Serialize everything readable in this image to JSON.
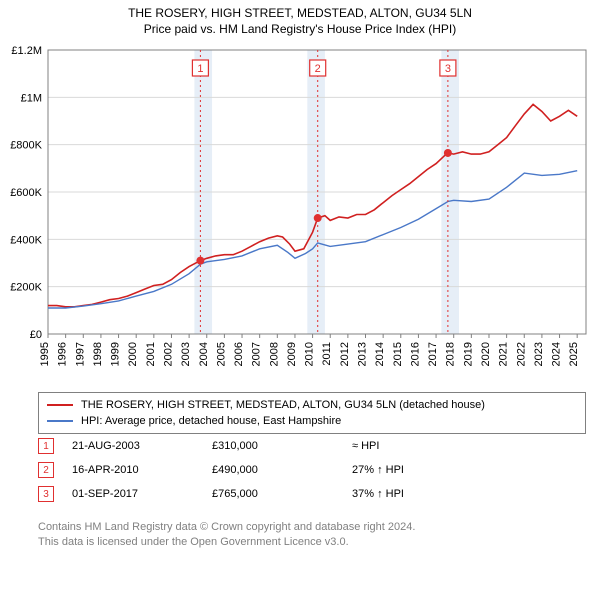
{
  "title": "THE ROSERY, HIGH STREET, MEDSTEAD, ALTON, GU34 5LN",
  "subtitle": "Price paid vs. HM Land Registry's House Price Index (HPI)",
  "chart": {
    "type": "line",
    "background_color": "#ffffff",
    "grid_color": "#d9d9d9",
    "axis_color": "#808080",
    "shade_color": "#e6eef7",
    "xlim": [
      1995,
      2025.5
    ],
    "x_ticks": [
      1995,
      1996,
      1997,
      1998,
      1999,
      2000,
      2001,
      2002,
      2003,
      2004,
      2005,
      2006,
      2007,
      2008,
      2009,
      2010,
      2011,
      2012,
      2013,
      2014,
      2015,
      2016,
      2017,
      2018,
      2019,
      2020,
      2021,
      2022,
      2023,
      2024,
      2025
    ],
    "ylim": [
      0,
      1200000
    ],
    "y_ticks": [
      0,
      200000,
      400000,
      600000,
      800000,
      1000000,
      1200000
    ],
    "y_tick_labels": [
      "£0",
      "£200K",
      "£400K",
      "£600K",
      "£800K",
      "£1M",
      "£1.2M"
    ],
    "shaded_x_ranges": [
      [
        2003.3,
        2004.3
      ],
      [
        2009.7,
        2010.7
      ],
      [
        2017.3,
        2018.3
      ]
    ],
    "markers": [
      {
        "num": "1",
        "x": 2003.64,
        "y": 310000
      },
      {
        "num": "2",
        "x": 2010.29,
        "y": 490000
      },
      {
        "num": "3",
        "x": 2017.67,
        "y": 765000
      }
    ],
    "marker_line_color": "#e03030",
    "marker_dot_color": "#e03030",
    "series": [
      {
        "name": "property",
        "color": "#d02020",
        "line_width": 1.6,
        "points": [
          [
            1995.0,
            120000
          ],
          [
            1995.5,
            120000
          ],
          [
            1996.0,
            115000
          ],
          [
            1996.5,
            115000
          ],
          [
            1997.0,
            120000
          ],
          [
            1997.5,
            125000
          ],
          [
            1998.0,
            135000
          ],
          [
            1998.5,
            145000
          ],
          [
            1999.0,
            150000
          ],
          [
            1999.5,
            160000
          ],
          [
            2000.0,
            175000
          ],
          [
            2000.5,
            190000
          ],
          [
            2001.0,
            205000
          ],
          [
            2001.5,
            210000
          ],
          [
            2002.0,
            230000
          ],
          [
            2002.5,
            260000
          ],
          [
            2003.0,
            285000
          ],
          [
            2003.64,
            310000
          ],
          [
            2004.0,
            320000
          ],
          [
            2004.5,
            330000
          ],
          [
            2005.0,
            335000
          ],
          [
            2005.5,
            335000
          ],
          [
            2006.0,
            350000
          ],
          [
            2006.5,
            370000
          ],
          [
            2007.0,
            390000
          ],
          [
            2007.5,
            405000
          ],
          [
            2008.0,
            415000
          ],
          [
            2008.3,
            410000
          ],
          [
            2008.7,
            380000
          ],
          [
            2009.0,
            350000
          ],
          [
            2009.5,
            360000
          ],
          [
            2010.0,
            430000
          ],
          [
            2010.29,
            490000
          ],
          [
            2010.7,
            500000
          ],
          [
            2011.0,
            480000
          ],
          [
            2011.5,
            495000
          ],
          [
            2012.0,
            490000
          ],
          [
            2012.5,
            505000
          ],
          [
            2013.0,
            505000
          ],
          [
            2013.5,
            525000
          ],
          [
            2014.0,
            555000
          ],
          [
            2014.5,
            585000
          ],
          [
            2015.0,
            610000
          ],
          [
            2015.5,
            635000
          ],
          [
            2016.0,
            665000
          ],
          [
            2016.5,
            695000
          ],
          [
            2017.0,
            720000
          ],
          [
            2017.5,
            755000
          ],
          [
            2017.67,
            765000
          ],
          [
            2018.0,
            760000
          ],
          [
            2018.5,
            770000
          ],
          [
            2019.0,
            760000
          ],
          [
            2019.5,
            760000
          ],
          [
            2020.0,
            770000
          ],
          [
            2020.5,
            800000
          ],
          [
            2021.0,
            830000
          ],
          [
            2021.5,
            880000
          ],
          [
            2022.0,
            930000
          ],
          [
            2022.5,
            970000
          ],
          [
            2023.0,
            940000
          ],
          [
            2023.5,
            900000
          ],
          [
            2024.0,
            920000
          ],
          [
            2024.5,
            945000
          ],
          [
            2025.0,
            920000
          ]
        ]
      },
      {
        "name": "hpi",
        "color": "#4a78c8",
        "line_width": 1.4,
        "points": [
          [
            1995.0,
            110000
          ],
          [
            1996.0,
            110000
          ],
          [
            1997.0,
            118000
          ],
          [
            1998.0,
            128000
          ],
          [
            1999.0,
            140000
          ],
          [
            2000.0,
            160000
          ],
          [
            2001.0,
            180000
          ],
          [
            2002.0,
            210000
          ],
          [
            2003.0,
            255000
          ],
          [
            2003.64,
            295000
          ],
          [
            2004.0,
            305000
          ],
          [
            2005.0,
            315000
          ],
          [
            2006.0,
            330000
          ],
          [
            2007.0,
            360000
          ],
          [
            2008.0,
            375000
          ],
          [
            2008.6,
            345000
          ],
          [
            2009.0,
            320000
          ],
          [
            2009.6,
            340000
          ],
          [
            2010.0,
            360000
          ],
          [
            2010.29,
            385000
          ],
          [
            2011.0,
            370000
          ],
          [
            2012.0,
            380000
          ],
          [
            2013.0,
            390000
          ],
          [
            2014.0,
            420000
          ],
          [
            2015.0,
            450000
          ],
          [
            2016.0,
            485000
          ],
          [
            2017.0,
            530000
          ],
          [
            2017.67,
            560000
          ],
          [
            2018.0,
            565000
          ],
          [
            2019.0,
            560000
          ],
          [
            2020.0,
            570000
          ],
          [
            2021.0,
            620000
          ],
          [
            2022.0,
            680000
          ],
          [
            2023.0,
            670000
          ],
          [
            2024.0,
            675000
          ],
          [
            2025.0,
            690000
          ]
        ]
      }
    ]
  },
  "legend": {
    "items": [
      {
        "color": "#d02020",
        "label": "THE ROSERY, HIGH STREET, MEDSTEAD, ALTON, GU34 5LN (detached house)"
      },
      {
        "color": "#4a78c8",
        "label": "HPI: Average price, detached house, East Hampshire"
      }
    ]
  },
  "events": [
    {
      "num": "1",
      "date": "21-AUG-2003",
      "price": "£310,000",
      "delta": "≈ HPI"
    },
    {
      "num": "2",
      "date": "16-APR-2010",
      "price": "£490,000",
      "delta": "27% ↑ HPI"
    },
    {
      "num": "3",
      "date": "01-SEP-2017",
      "price": "£765,000",
      "delta": "37% ↑ HPI"
    }
  ],
  "footer": {
    "line1": "Contains HM Land Registry data © Crown copyright and database right 2024.",
    "line2": "This data is licensed under the Open Government Licence v3.0."
  }
}
